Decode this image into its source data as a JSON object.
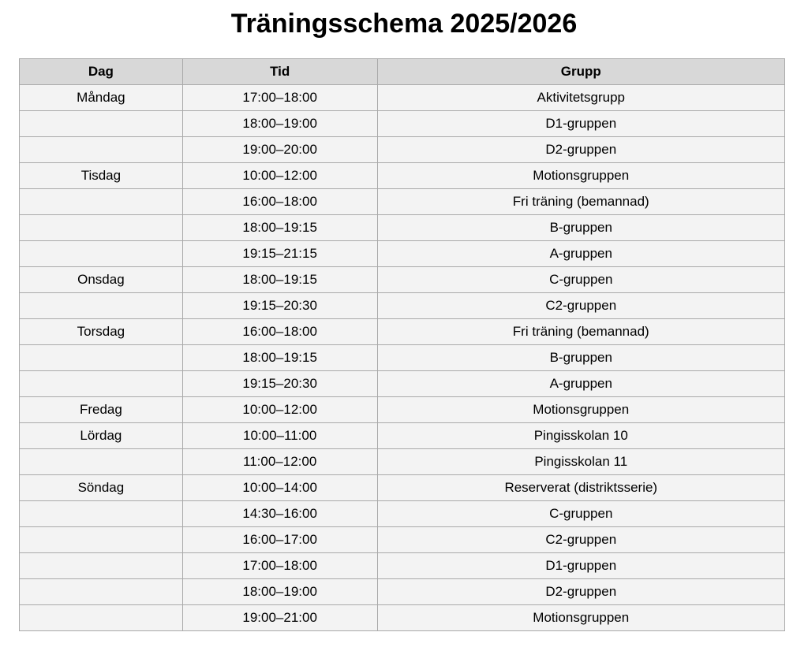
{
  "title": "Träningsschema 2025/2026",
  "headers": [
    "Dag",
    "Tid",
    "Grupp"
  ],
  "rows": [
    [
      "Måndag",
      "17:00–18:00",
      "Aktivitetsgrupp"
    ],
    [
      "",
      "18:00–19:00",
      "D1-gruppen"
    ],
    [
      "",
      "19:00–20:00",
      "D2-gruppen"
    ],
    [
      "Tisdag",
      "10:00–12:00",
      "Motionsgruppen"
    ],
    [
      "",
      "16:00–18:00",
      "Fri träning (bemannad)"
    ],
    [
      "",
      "18:00–19:15",
      "B-gruppen"
    ],
    [
      "",
      "19:15–21:15",
      "A-gruppen"
    ],
    [
      "Onsdag",
      "18:00–19:15",
      "C-gruppen"
    ],
    [
      "",
      "19:15–20:30",
      "C2-gruppen"
    ],
    [
      "Torsdag",
      "16:00–18:00",
      "Fri träning (bemannad)"
    ],
    [
      "",
      "18:00–19:15",
      "B-gruppen"
    ],
    [
      "",
      "19:15–20:30",
      "A-gruppen"
    ],
    [
      "Fredag",
      "10:00–12:00",
      "Motionsgruppen"
    ],
    [
      "Lördag",
      "10:00–11:00",
      "Pingisskolan 10"
    ],
    [
      "",
      "11:00–12:00",
      "Pingisskolan 11"
    ],
    [
      "Söndag",
      "10:00–14:00",
      "Reserverat (distriktsserie)"
    ],
    [
      "",
      "14:30–16:00",
      "C-gruppen"
    ],
    [
      "",
      "16:00–17:00",
      "C2-gruppen"
    ],
    [
      "",
      "17:00–18:00",
      "D1-gruppen"
    ],
    [
      "",
      "18:00–19:00",
      "D2-gruppen"
    ],
    [
      "",
      "19:00–21:00",
      "Motionsgruppen"
    ]
  ]
}
